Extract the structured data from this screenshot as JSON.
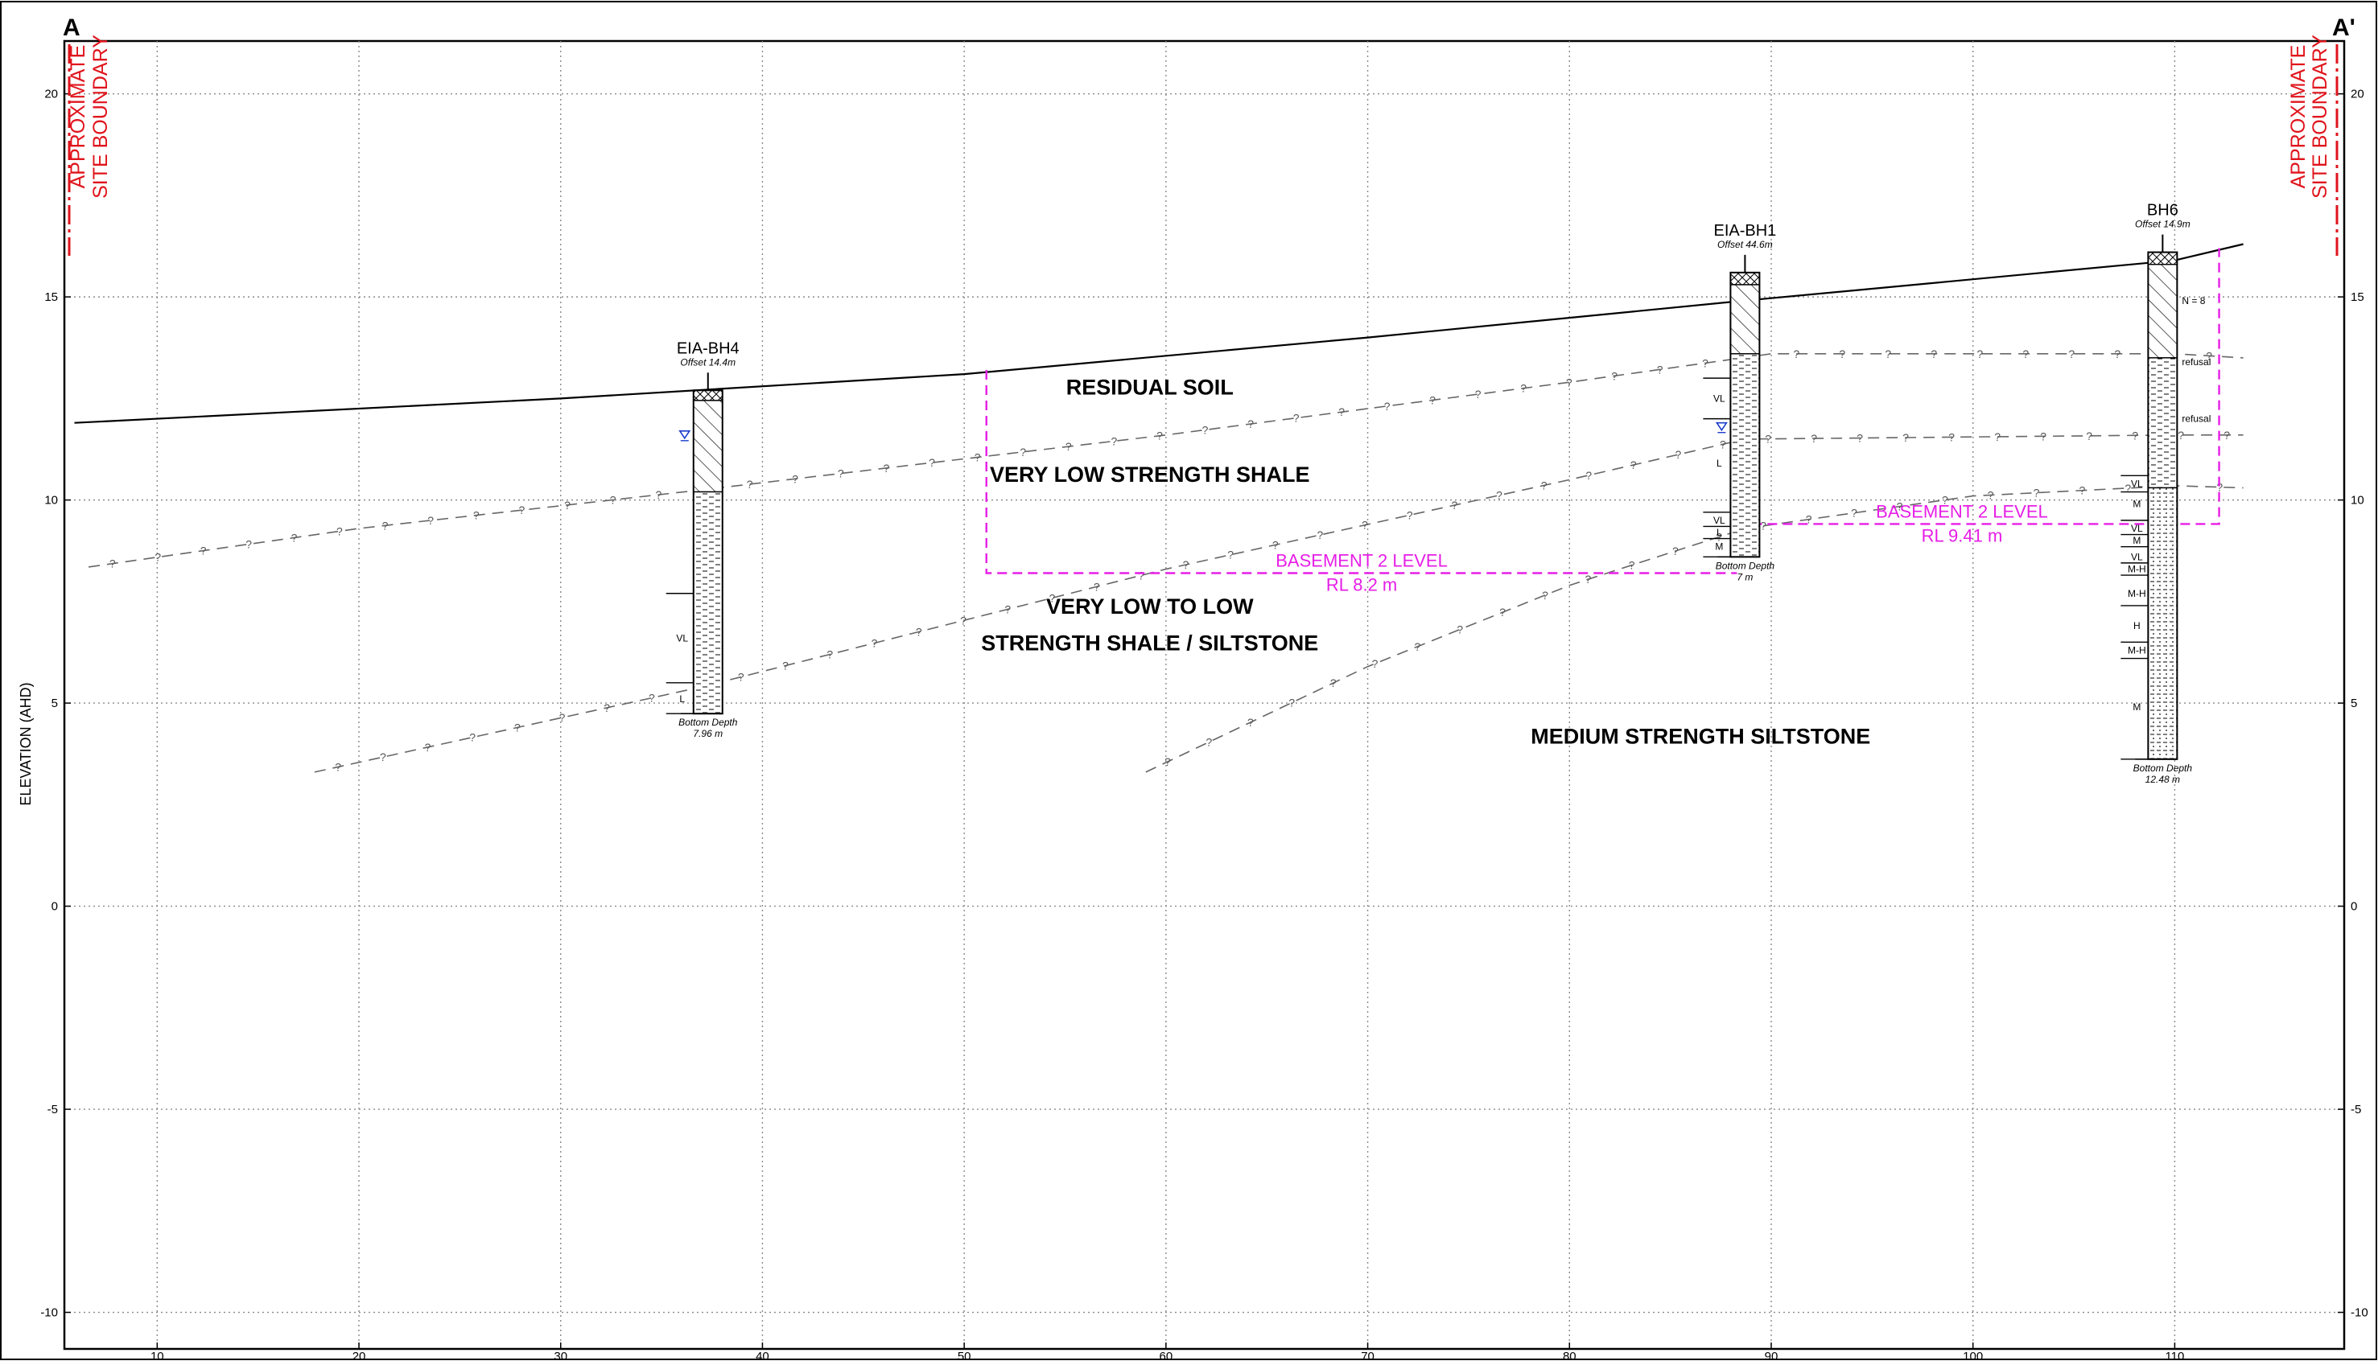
{
  "section": {
    "start_label": "A",
    "end_label": "A'"
  },
  "boundary": {
    "line1": "APPROXIMATE",
    "line2": "SITE BOUNDARY",
    "color": "#e0141c"
  },
  "axes": {
    "y_title": "ELEVATION (AHD)",
    "x_ticks": [
      10,
      20,
      30,
      40,
      50,
      60,
      70,
      80,
      90,
      100,
      110
    ],
    "y_ticks": [
      20,
      15,
      10,
      5,
      0,
      -5,
      -10
    ],
    "x_range": [
      5.4,
      118.4
    ],
    "y_range": [
      -10.9,
      21.3
    ]
  },
  "ground_surface": [
    [
      5.9,
      11.9
    ],
    [
      30,
      12.5
    ],
    [
      50,
      13.1
    ],
    [
      70,
      14
    ],
    [
      88.5,
      14.9
    ],
    [
      110,
      15.9
    ],
    [
      113.4,
      16.3
    ]
  ],
  "boreholes": [
    {
      "name": "EIA-BH4",
      "offset": "Offset  14.4m",
      "bottom": "Bottom Depth",
      "depth": "7.96 m",
      "x": 37.3,
      "top": 12.7,
      "base": 4.74,
      "water": 11.6,
      "layers": [
        {
          "from": 12.7,
          "to": 12.45,
          "pattern": "fill"
        },
        {
          "from": 12.45,
          "to": 10.2,
          "pattern": "clay"
        },
        {
          "from": 10.2,
          "to": 4.74,
          "pattern": "shale"
        }
      ],
      "strengths": [
        {
          "label": "VL",
          "elev": 6.6
        },
        {
          "label": "L",
          "elev": 5.1
        }
      ],
      "strength_breaks": [
        7.7,
        5.5,
        4.74
      ]
    },
    {
      "name": "EIA-BH1",
      "offset": "Offset  44.6m",
      "bottom": "Bottom Depth",
      "depth": "7 m",
      "x": 88.7,
      "top": 15.6,
      "base": 8.6,
      "water": 11.8,
      "layers": [
        {
          "from": 15.6,
          "to": 15.3,
          "pattern": "fill"
        },
        {
          "from": 15.3,
          "to": 13.6,
          "pattern": "clay"
        },
        {
          "from": 13.6,
          "to": 8.6,
          "pattern": "shale"
        }
      ],
      "strengths": [
        {
          "label": "VL",
          "elev": 12.5
        },
        {
          "label": "L",
          "elev": 10.9
        },
        {
          "label": "VL",
          "elev": 9.5
        },
        {
          "label": "L",
          "elev": 9.2
        },
        {
          "label": "M",
          "elev": 8.85
        }
      ],
      "strength_breaks": [
        13,
        12.0,
        9.7,
        9.35,
        9.05,
        8.6
      ]
    },
    {
      "name": "BH6",
      "offset": "Offset  14.9m",
      "bottom": "Bottom Depth",
      "depth": "12.48 m",
      "x": 109.4,
      "top": 16.1,
      "base": 3.62,
      "water": null,
      "layers": [
        {
          "from": 16.1,
          "to": 15.8,
          "pattern": "fill"
        },
        {
          "from": 15.8,
          "to": 13.5,
          "pattern": "clay"
        },
        {
          "from": 13.5,
          "to": 10.3,
          "pattern": "shale"
        },
        {
          "from": 10.3,
          "to": 3.62,
          "pattern": "siltstone"
        }
      ],
      "strengths": [
        {
          "label": "VL",
          "elev": 10.4
        },
        {
          "label": "M",
          "elev": 9.9
        },
        {
          "label": "VL",
          "elev": 9.3
        },
        {
          "label": "M",
          "elev": 9.0
        },
        {
          "label": "VL",
          "elev": 8.6
        },
        {
          "label": "M-H",
          "elev": 8.3
        },
        {
          "label": "M-H",
          "elev": 7.7
        },
        {
          "label": "H",
          "elev": 6.9
        },
        {
          "label": "M-H",
          "elev": 6.3
        },
        {
          "label": "M",
          "elev": 4.9
        }
      ],
      "strength_breaks": [
        10.6,
        10.2,
        9.5,
        9.15,
        8.85,
        8.45,
        8.15,
        7.4,
        6.5,
        6.1,
        3.62
      ],
      "notes": [
        {
          "label": "N = 8",
          "elev": 14.9
        },
        {
          "label": "refusal",
          "elev": 13.4
        },
        {
          "label": "refusal",
          "elev": 12.0
        }
      ]
    }
  ],
  "units": [
    {
      "label": "RESIDUAL SOIL",
      "x": 59.2,
      "y": 12.6
    },
    {
      "label": "VERY LOW STRENGTH SHALE",
      "x": 59.2,
      "y": 10.45
    },
    {
      "label": "VERY LOW TO LOW",
      "x": 59.2,
      "y": 7.2
    },
    {
      "label": "STRENGTH SHALE / SILTSTONE",
      "x": 59.2,
      "y": 6.3
    },
    {
      "label": "MEDIUM STRENGTH SILTSTONE",
      "x": 86.5,
      "y": 4.0
    }
  ],
  "boundaries_inferred": [
    [
      [
        6.6,
        8.35
      ],
      [
        20,
        9.3
      ],
      [
        37,
        10.25
      ],
      [
        60,
        11.6
      ],
      [
        80,
        12.9
      ],
      [
        90,
        13.6
      ],
      [
        110,
        13.6
      ],
      [
        113.4,
        13.5
      ]
    ],
    [
      [
        17.8,
        3.3
      ],
      [
        37,
        5.4
      ],
      [
        60,
        8.3
      ],
      [
        80,
        10.5
      ],
      [
        88.7,
        11.5
      ],
      [
        110,
        11.6
      ],
      [
        113.4,
        11.6
      ]
    ],
    [
      [
        59,
        3.3
      ],
      [
        70,
        5.9
      ],
      [
        80,
        7.9
      ],
      [
        88.7,
        9.3
      ],
      [
        100,
        10.1
      ],
      [
        110,
        10.35
      ],
      [
        113.4,
        10.3
      ]
    ]
  ],
  "basements": [
    {
      "title": "BASEMENT 2 LEVEL",
      "rl": "RL 8.2 m",
      "x1": 51.1,
      "x2": 88.3,
      "level": 8.2,
      "top": 13.2
    },
    {
      "title": "BASEMENT 2 LEVEL",
      "rl": "RL 9.41 m",
      "x1": 88.3,
      "x2": 112.2,
      "level": 9.41,
      "top": 16.2
    }
  ]
}
